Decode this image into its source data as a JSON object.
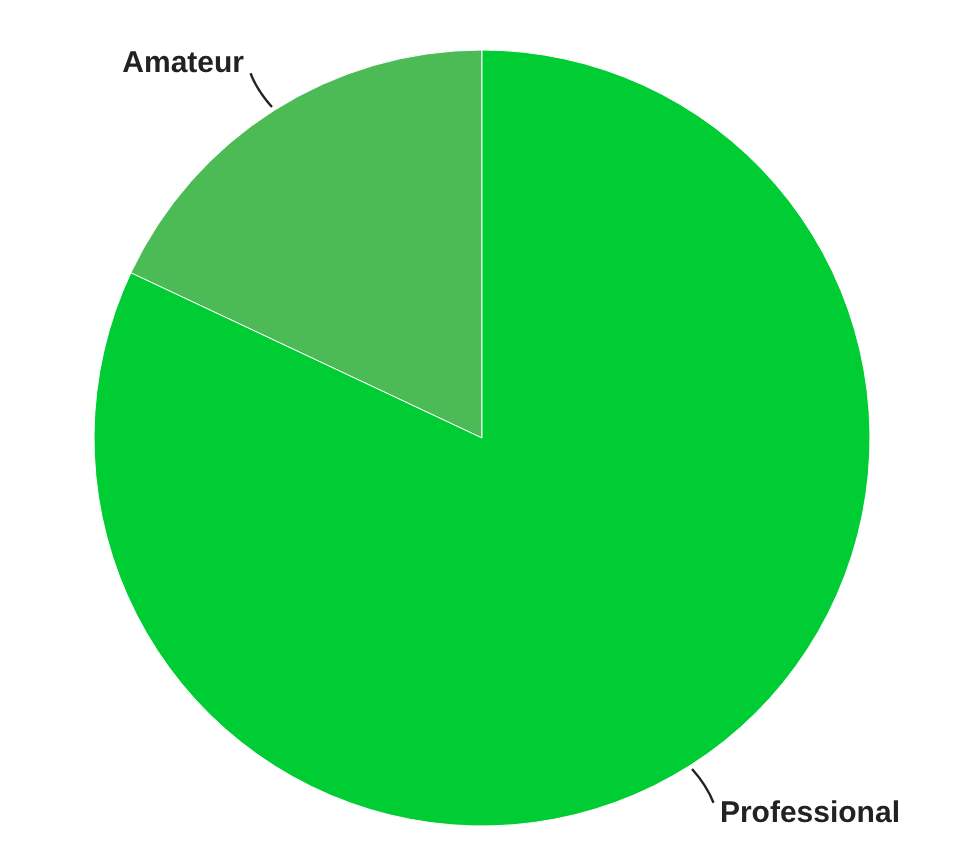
{
  "chart_data": {
    "type": "pie",
    "categories": [
      "Amateur",
      "Professional"
    ],
    "values": [
      18,
      82
    ],
    "colors": [
      "#4cbb55",
      "#00cc33"
    ]
  }
}
